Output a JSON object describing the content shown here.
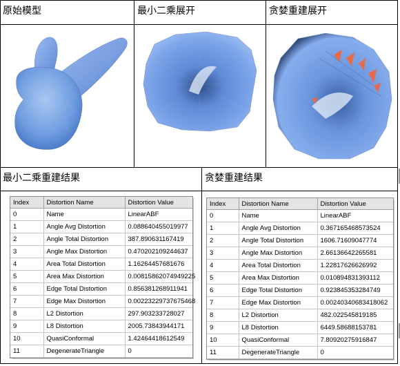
{
  "panels": {
    "original": "原始模型",
    "least_squares": "最小二乘展开",
    "greedy": "贪婪重建展开"
  },
  "results": {
    "least_squares_title": "最小二乘重建结果",
    "greedy_title": "贪婪重建结果"
  },
  "table_headers": [
    "Index",
    "Distortion Name",
    "Distortion Value"
  ],
  "least_squares_table": [
    [
      "0",
      "Name",
      "LinearABF"
    ],
    [
      "1",
      "Angle Avg Distortion",
      "0.088640455019977"
    ],
    [
      "2",
      "Angle Total Distortion",
      "387.890631167419"
    ],
    [
      "3",
      "Angle Max Distortion",
      "0.470202109244637"
    ],
    [
      "4",
      "Area Total Distortion",
      "1.16264457681676"
    ],
    [
      "5",
      "Area Max Distortion",
      "0.00815862074949225"
    ],
    [
      "6",
      "Edge Total  Distortion",
      "0.856381268911941"
    ],
    [
      "7",
      "Edge Max  Distortion",
      "0.00223229737675468"
    ],
    [
      "8",
      "L2 Distortion",
      "297.903233728027"
    ],
    [
      "9",
      "L8 Distortion",
      "2005.73843944171"
    ],
    [
      "10",
      "QuasiConformal",
      "1.42464418612549"
    ],
    [
      "11",
      "DegenerateTriangle",
      "0"
    ]
  ],
  "greedy_table": [
    [
      "0",
      "Name",
      "LinearABF"
    ],
    [
      "1",
      "Angle Avg Distortion",
      "0.367165468573524"
    ],
    [
      "2",
      "Angle Total Distortion",
      "1606.71609047774"
    ],
    [
      "3",
      "Angle Max Distortion",
      "2.66136642265581"
    ],
    [
      "4",
      "Area Total Distortion",
      "1.22817626626992"
    ],
    [
      "5",
      "Area Max Distortion",
      "0.010894831393112"
    ],
    [
      "6",
      "Edge Total  Distortion",
      "0.923845353284749"
    ],
    [
      "7",
      "Edge Max  Distortion",
      "0.00240340683418062"
    ],
    [
      "8",
      "L2 Distortion",
      "482.022545819185"
    ],
    [
      "9",
      "L8 Distortion",
      "6449.58688153781"
    ],
    [
      "10",
      "QuasiConformal",
      "7.80920275916847"
    ],
    [
      "11",
      "DegenerateTriangle",
      "0"
    ]
  ]
}
